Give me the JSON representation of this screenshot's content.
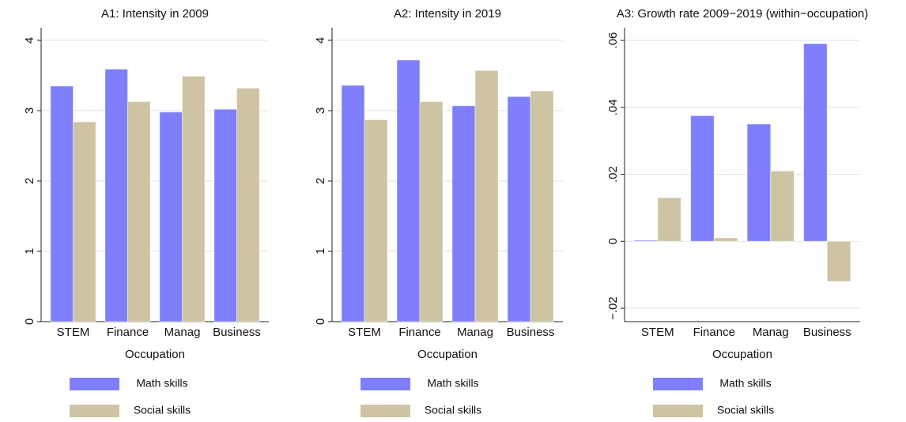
{
  "chart_data": [
    {
      "type": "bar",
      "title": "A1: Intensity in 2009",
      "x_label": "Occupation",
      "categories": [
        "STEM",
        "Finance",
        "Manag",
        "Business"
      ],
      "series": [
        {
          "name": "Math skills",
          "color": "#7f7ffb",
          "values": [
            3.35,
            3.59,
            2.98,
            3.02
          ]
        },
        {
          "name": "Social skills",
          "color": "#cec3a2",
          "values": [
            2.84,
            3.13,
            3.49,
            3.32
          ]
        }
      ],
      "ylim": [
        0,
        4.18
      ],
      "yticks": [
        0,
        1,
        2,
        3,
        4
      ],
      "grid": true
    },
    {
      "type": "bar",
      "title": "A2: Intensity in 2019",
      "x_label": "Occupation",
      "categories": [
        "STEM",
        "Finance",
        "Manag",
        "Business"
      ],
      "series": [
        {
          "name": "Math skills",
          "color": "#7f7ffb",
          "values": [
            3.36,
            3.72,
            3.07,
            3.2
          ]
        },
        {
          "name": "Social skills",
          "color": "#cec3a2",
          "values": [
            2.87,
            3.13,
            3.57,
            3.28
          ]
        }
      ],
      "ylim": [
        0,
        4.18
      ],
      "yticks": [
        0,
        1,
        2,
        3,
        4
      ],
      "grid": true
    },
    {
      "type": "bar",
      "title": "A3: Growth rate 2009−2019 (within−occupation)",
      "x_label": "Occupation",
      "categories": [
        "STEM",
        "Finance",
        "Manag",
        "Business"
      ],
      "series": [
        {
          "name": "Math skills",
          "color": "#7f7ffb",
          "values": [
            0.0003,
            0.0375,
            0.035,
            0.059
          ]
        },
        {
          "name": "Social skills",
          "color": "#cec3a2",
          "values": [
            0.013,
            0.001,
            0.021,
            -0.012
          ]
        }
      ],
      "ylim": [
        -0.024,
        0.0638
      ],
      "yticks": [
        {
          "value": -0.02,
          "label": "−.02"
        },
        0,
        {
          "value": 0.02,
          "label": ".02"
        },
        {
          "value": 0.04,
          "label": ".04"
        },
        {
          "value": 0.06,
          "label": ".06"
        }
      ],
      "grid": true
    }
  ]
}
